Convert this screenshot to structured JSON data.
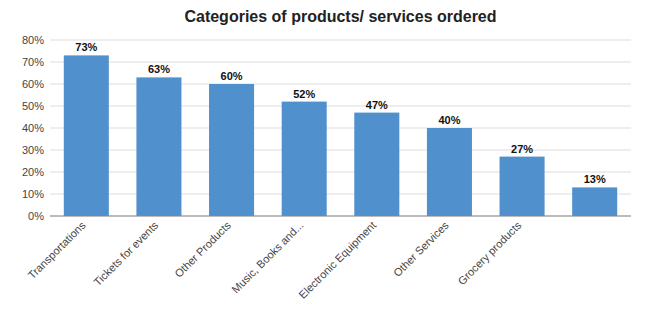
{
  "chart_data": {
    "type": "bar",
    "title": "Categories of products/ services ordered",
    "categories": [
      "Transportations",
      "Tickets for events",
      "Other Products",
      "Music, Books and...",
      "Electronic Equipment",
      "Other Services",
      "Grocery products",
      null
    ],
    "values": [
      73,
      63,
      60,
      52,
      47,
      40,
      27,
      13
    ],
    "value_labels": [
      "73%",
      "63%",
      "60%",
      "52%",
      "47%",
      "40%",
      "27%",
      "13%"
    ],
    "data_labels": true,
    "color": "#4f90cd",
    "ylim": [
      0,
      80
    ],
    "yticks": [
      {
        "value": 0,
        "label": "0%"
      },
      {
        "value": 10,
        "label": "10%"
      },
      {
        "value": 20,
        "label": "20%"
      },
      {
        "value": 30,
        "label": "30%"
      },
      {
        "value": 40,
        "label": "40%"
      },
      {
        "value": 50,
        "label": "50%"
      },
      {
        "value": 60,
        "label": "60%"
      },
      {
        "value": 70,
        "label": "70%"
      },
      {
        "value": 80,
        "label": "80%"
      }
    ],
    "grid": true
  }
}
